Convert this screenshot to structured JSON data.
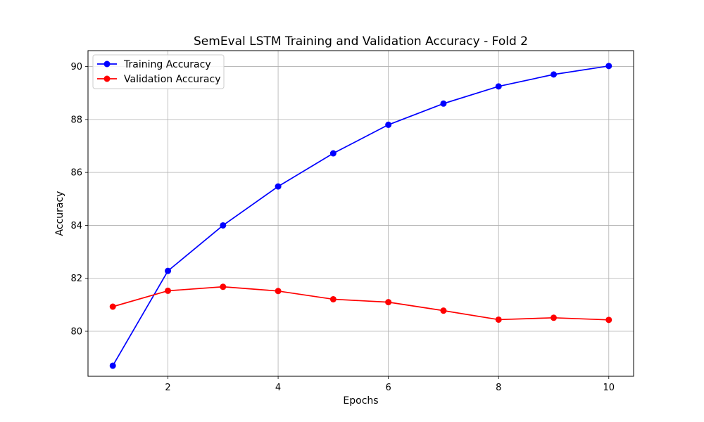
{
  "chart_data": {
    "type": "line",
    "title": "SemEval LSTM Training and Validation Accuracy - Fold 2",
    "xlabel": "Epochs",
    "ylabel": "Accuracy",
    "x": [
      1,
      2,
      3,
      4,
      5,
      6,
      7,
      8,
      9,
      10
    ],
    "xlim": [
      0.55,
      10.45
    ],
    "ylim": [
      78.3,
      90.6
    ],
    "xticks": [
      2,
      4,
      6,
      8,
      10
    ],
    "yticks": [
      80,
      82,
      84,
      86,
      88,
      90
    ],
    "grid": true,
    "legend_position": "top-left",
    "series": [
      {
        "name": "Training Accuracy",
        "color": "#0000ff",
        "marker": "circle",
        "values": [
          78.7,
          82.28,
          84.0,
          85.47,
          86.72,
          87.8,
          88.6,
          89.25,
          89.7,
          90.02
        ]
      },
      {
        "name": "Validation Accuracy",
        "color": "#ff0000",
        "marker": "circle",
        "values": [
          80.93,
          81.53,
          81.68,
          81.52,
          81.21,
          81.1,
          80.78,
          80.44,
          80.51,
          80.43
        ]
      }
    ]
  }
}
